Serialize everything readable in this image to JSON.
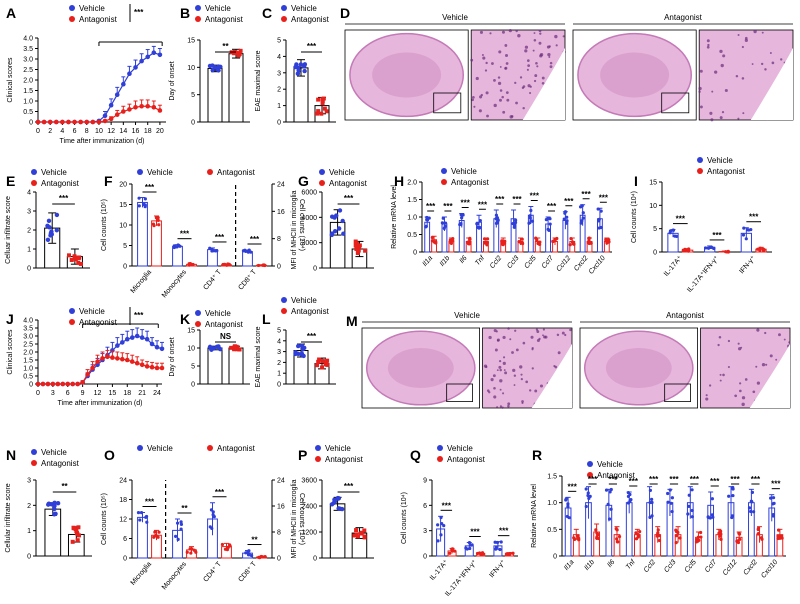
{
  "colors": {
    "vehicle": "#2f3fd8",
    "antagonist": "#e8201c",
    "tissue": "#c47ab7",
    "tissue_light": "#e6b6dc"
  },
  "legend": {
    "vehicle": "Vehicle",
    "antagonist": "Antagonist"
  },
  "chart_data": [
    {
      "id": "A",
      "type": "line",
      "title": "",
      "xlabel": "Time after immunization (d)",
      "ylabel": "Clinical scores",
      "xlim": [
        0,
        21
      ],
      "ylim": [
        0,
        4.0
      ],
      "xticks": [
        "0",
        "2",
        "4",
        "6",
        "8",
        "10",
        "12",
        "14",
        "16",
        "18",
        "20"
      ],
      "yticks": [
        "0",
        "0.5",
        "1.0",
        "1.5",
        "2.0",
        "2.5",
        "3.0",
        "3.5",
        "4.0"
      ],
      "significance": "***",
      "series": [
        {
          "name": "Vehicle",
          "x": [
            0,
            1,
            2,
            3,
            4,
            5,
            6,
            7,
            8,
            9,
            10,
            11,
            12,
            13,
            14,
            15,
            16,
            17,
            18,
            19,
            20
          ],
          "values": [
            0,
            0,
            0,
            0,
            0,
            0,
            0,
            0,
            0,
            0,
            0.05,
            0.3,
            0.8,
            1.3,
            1.8,
            2.3,
            2.6,
            2.9,
            3.1,
            3.3,
            3.2
          ],
          "err": [
            0,
            0,
            0,
            0,
            0,
            0,
            0,
            0,
            0,
            0,
            0.05,
            0.2,
            0.3,
            0.35,
            0.35,
            0.35,
            0.35,
            0.35,
            0.35,
            0.3,
            0.3
          ]
        },
        {
          "name": "Antagonist",
          "x": [
            0,
            1,
            2,
            3,
            4,
            5,
            6,
            7,
            8,
            9,
            10,
            11,
            12,
            13,
            14,
            15,
            16,
            17,
            18,
            19,
            20
          ],
          "values": [
            0,
            0,
            0,
            0,
            0,
            0,
            0,
            0,
            0,
            0,
            0,
            0.05,
            0.15,
            0.35,
            0.5,
            0.6,
            0.7,
            0.75,
            0.75,
            0.7,
            0.55
          ],
          "err": [
            0,
            0,
            0,
            0,
            0,
            0,
            0,
            0,
            0,
            0,
            0,
            0.05,
            0.1,
            0.2,
            0.25,
            0.25,
            0.3,
            0.3,
            0.3,
            0.3,
            0.25
          ]
        }
      ]
    },
    {
      "id": "B",
      "type": "bar",
      "ylabel": "Day of onset",
      "ylim": [
        0,
        15
      ],
      "yticks": [
        "0",
        "5",
        "10",
        "15"
      ],
      "significance": "**",
      "series": [
        {
          "name": "Vehicle",
          "values": [
            9.8
          ],
          "err": [
            0.6
          ]
        },
        {
          "name": "Antagonist",
          "values": [
            12.5
          ],
          "err": [
            0.8
          ]
        }
      ]
    },
    {
      "id": "C",
      "type": "bar",
      "ylabel": "EAE maximal score",
      "ylim": [
        0,
        5
      ],
      "yticks": [
        "0",
        "1",
        "2",
        "3",
        "4",
        "5"
      ],
      "significance": "***",
      "series": [
        {
          "name": "Vehicle",
          "values": [
            3.3
          ],
          "err": [
            0.5
          ]
        },
        {
          "name": "Antagonist",
          "values": [
            1.0
          ],
          "err": [
            0.5
          ]
        }
      ]
    },
    {
      "id": "E",
      "type": "bar",
      "ylabel": "Celluar infiltrate score",
      "ylim": [
        0,
        4
      ],
      "yticks": [
        "0",
        "1",
        "2",
        "3",
        "4"
      ],
      "significance": "***",
      "series": [
        {
          "name": "Vehicle",
          "values": [
            2.1
          ],
          "err": [
            0.8
          ]
        },
        {
          "name": "Antagonist",
          "values": [
            0.6
          ],
          "err": [
            0.4
          ]
        }
      ]
    },
    {
      "id": "F",
      "type": "bar",
      "ylabel": "Cell counts (10⁵)",
      "ylabel_right": "Cell counts (10⁴)",
      "ylim": [
        0,
        20
      ],
      "ylim_right": [
        0,
        24
      ],
      "yticks": [
        "0",
        "5",
        "10",
        "15",
        "20"
      ],
      "yticks_right": [
        "0",
        "8",
        "16",
        "24"
      ],
      "categories": [
        "Microglia",
        "Monocytes",
        "CD4⁺ T",
        "CD8⁺ T"
      ],
      "significance": [
        "***",
        "***",
        "***",
        "***"
      ],
      "series": [
        {
          "name": "Vehicle",
          "values": [
            15.5,
            4.8,
            4.0,
            3.5
          ],
          "err": [
            1.2,
            0.4,
            0.4,
            0.4
          ]
        },
        {
          "name": "Antagonist",
          "values": [
            11,
            0.4,
            0.3,
            0.2
          ],
          "err": [
            1.2,
            0.2,
            0.2,
            0.1
          ]
        }
      ]
    },
    {
      "id": "G",
      "type": "bar",
      "ylabel": "MFI of MHCII in microglia",
      "ylim": [
        0,
        6000
      ],
      "yticks": [
        "0",
        "2000",
        "4000",
        "6000"
      ],
      "significance": "***",
      "series": [
        {
          "name": "Vehicle",
          "values": [
            3600
          ],
          "err": [
            1000
          ]
        },
        {
          "name": "Antagonist",
          "values": [
            1500
          ],
          "err": [
            600
          ]
        }
      ]
    },
    {
      "id": "H",
      "type": "bar",
      "ylabel": "Relative mRNA level",
      "ylim": [
        0,
        2.0
      ],
      "yticks": [
        "0",
        "0.5",
        "1.0",
        "1.5",
        "2.0"
      ],
      "categories": [
        "Il1a",
        "Il1b",
        "Il6",
        "Tnf",
        "Ccl2",
        "Ccl3",
        "Ccl5",
        "Ccl7",
        "Ccl12",
        "Cxcl2",
        "Cxcl10"
      ],
      "significance": [
        "***",
        "***",
        "***",
        "***",
        "***",
        "***",
        "***",
        "***",
        "***",
        "***",
        "***"
      ],
      "series": [
        {
          "name": "Vehicle",
          "values": [
            0.85,
            0.8,
            0.9,
            0.85,
            0.95,
            0.95,
            1.05,
            0.8,
            0.9,
            1.05,
            0.95
          ],
          "err": [
            0.15,
            0.2,
            0.2,
            0.2,
            0.25,
            0.25,
            0.25,
            0.2,
            0.25,
            0.3,
            0.3
          ]
        },
        {
          "name": "Antagonist",
          "values": [
            0.35,
            0.3,
            0.3,
            0.3,
            0.3,
            0.3,
            0.3,
            0.3,
            0.3,
            0.3,
            0.3
          ],
          "err": [
            0.1,
            0.1,
            0.1,
            0.1,
            0.1,
            0.1,
            0.1,
            0.1,
            0.1,
            0.1,
            0.1
          ]
        }
      ]
    },
    {
      "id": "I",
      "type": "bar",
      "ylabel": "Cell counts (10⁴)",
      "ylim": [
        0,
        15
      ],
      "yticks": [
        "0",
        "5",
        "10",
        "15"
      ],
      "categories": [
        "IL-17A⁺",
        "IL-17A⁺IFN-γ⁺",
        "IFN-γ⁺"
      ],
      "significance": [
        "***",
        "***",
        "***"
      ],
      "series": [
        {
          "name": "Vehicle",
          "values": [
            4.0,
            1.0,
            4.0
          ],
          "err": [
            0.8,
            0.3,
            1.2
          ]
        },
        {
          "name": "Antagonist",
          "values": [
            0.4,
            0.1,
            0.6
          ],
          "err": [
            0.3,
            0.1,
            0.4
          ]
        }
      ]
    },
    {
      "id": "J",
      "type": "line",
      "xlabel": "Time after immunization (d)",
      "ylabel": "Clinical scores",
      "xlim": [
        0,
        25
      ],
      "ylim": [
        0,
        4.0
      ],
      "xticks": [
        "0",
        "3",
        "6",
        "9",
        "12",
        "15",
        "18",
        "21",
        "24"
      ],
      "yticks": [
        "0",
        "0.5",
        "1.0",
        "1.5",
        "2.0",
        "2.5",
        "3.0",
        "3.5",
        "4.0"
      ],
      "significance": "***",
      "series": [
        {
          "name": "Vehicle",
          "x": [
            0,
            1,
            2,
            3,
            4,
            5,
            6,
            7,
            8,
            9,
            10,
            11,
            12,
            13,
            14,
            15,
            16,
            17,
            18,
            19,
            20,
            21,
            22,
            23,
            24,
            25
          ],
          "values": [
            0,
            0,
            0,
            0,
            0,
            0,
            0,
            0,
            0,
            0.1,
            0.5,
            0.9,
            1.2,
            1.5,
            1.8,
            2.1,
            2.4,
            2.6,
            2.8,
            2.9,
            3.0,
            2.9,
            2.8,
            2.5,
            2.3,
            2.2
          ],
          "err": [
            0,
            0,
            0,
            0,
            0,
            0,
            0,
            0,
            0,
            0.1,
            0.2,
            0.3,
            0.4,
            0.4,
            0.5,
            0.5,
            0.5,
            0.5,
            0.5,
            0.5,
            0.5,
            0.5,
            0.5,
            0.4,
            0.4,
            0.4
          ]
        },
        {
          "name": "Antagonist",
          "x": [
            0,
            1,
            2,
            3,
            4,
            5,
            6,
            7,
            8,
            9,
            10,
            11,
            12,
            13,
            14,
            15,
            16,
            17,
            18,
            19,
            20,
            21,
            22,
            23,
            24,
            25
          ],
          "values": [
            0,
            0,
            0,
            0,
            0,
            0,
            0,
            0,
            0,
            0.1,
            0.6,
            1.0,
            1.4,
            1.6,
            1.7,
            1.65,
            1.6,
            1.55,
            1.5,
            1.4,
            1.3,
            1.2,
            1.1,
            1.05,
            1.0,
            1.0
          ],
          "err": [
            0,
            0,
            0,
            0,
            0,
            0,
            0,
            0,
            0,
            0.1,
            0.3,
            0.4,
            0.4,
            0.4,
            0.4,
            0.4,
            0.4,
            0.4,
            0.4,
            0.4,
            0.4,
            0.3,
            0.3,
            0.3,
            0.3,
            0.3
          ]
        }
      ]
    },
    {
      "id": "K",
      "type": "bar",
      "ylabel": "Day of onset",
      "ylim": [
        0,
        15
      ],
      "yticks": [
        "0",
        "5",
        "10",
        "15"
      ],
      "significance": "NS",
      "series": [
        {
          "name": "Vehicle",
          "values": [
            10
          ],
          "err": [
            0.5
          ]
        },
        {
          "name": "Antagonist",
          "values": [
            10
          ],
          "err": [
            0.5
          ]
        }
      ]
    },
    {
      "id": "L",
      "type": "bar",
      "ylabel": "EAE maximal score",
      "ylim": [
        0,
        5
      ],
      "yticks": [
        "0",
        "1",
        "2",
        "3",
        "4",
        "5"
      ],
      "significance": "***",
      "series": [
        {
          "name": "Vehicle",
          "values": [
            3.1
          ],
          "err": [
            0.6
          ]
        },
        {
          "name": "Antagonist",
          "values": [
            1.9
          ],
          "err": [
            0.5
          ]
        }
      ]
    },
    {
      "id": "N",
      "type": "bar",
      "ylabel": "Cellular infiltrate score",
      "ylim": [
        0,
        3
      ],
      "yticks": [
        "0",
        "1",
        "2",
        "3"
      ],
      "significance": "**",
      "series": [
        {
          "name": "Vehicle",
          "values": [
            1.85
          ],
          "err": [
            0.25
          ]
        },
        {
          "name": "Antagonist",
          "values": [
            0.85
          ],
          "err": [
            0.3
          ]
        }
      ]
    },
    {
      "id": "O",
      "type": "bar",
      "ylabel": "Cell counts (10⁵)",
      "ylabel_right": "Cell counts (10⁴)",
      "ylim": [
        0,
        24
      ],
      "ylim_right": [
        0,
        24
      ],
      "yticks": [
        "0",
        "6",
        "12",
        "18",
        "24"
      ],
      "yticks_right": [
        "0",
        "8",
        "16",
        "24"
      ],
      "categories": [
        "Microglia",
        "Monocytes",
        "CD4⁺ T",
        "CD8⁺ T"
      ],
      "significance": [
        "***",
        "**",
        "***",
        "**"
      ],
      "series": [
        {
          "name": "Vehicle",
          "values": [
            12.5,
            8.5,
            12,
            1.5
          ],
          "err": [
            1.5,
            3.5,
            5.0,
            0.8
          ]
        },
        {
          "name": "Antagonist",
          "values": [
            7.0,
            2.5,
            3.5,
            0.3
          ],
          "err": [
            1.5,
            1.0,
            1.0,
            0.2
          ]
        }
      ]
    },
    {
      "id": "P",
      "type": "bar",
      "ylabel": "MFI of MHCII in microglia",
      "ylim": [
        0,
        3600
      ],
      "yticks": [
        "0",
        "1200",
        "2400",
        "3600"
      ],
      "significance": "***",
      "series": [
        {
          "name": "Vehicle",
          "values": [
            2500
          ],
          "err": [
            300
          ]
        },
        {
          "name": "Antagonist",
          "values": [
            1150
          ],
          "err": [
            250
          ]
        }
      ]
    },
    {
      "id": "Q",
      "type": "bar",
      "ylabel": "Cell counts (10⁴)",
      "ylim": [
        0,
        9
      ],
      "yticks": [
        "0",
        "3",
        "6",
        "9"
      ],
      "categories": [
        "IL-17A⁺",
        "IL-17A⁺IFN-γ⁺",
        "IFN-γ⁺"
      ],
      "significance": [
        "***",
        "***",
        "***"
      ],
      "series": [
        {
          "name": "Vehicle",
          "values": [
            3.2,
            1.2,
            1.2
          ],
          "err": [
            1.5,
            0.4,
            0.5
          ]
        },
        {
          "name": "Antagonist",
          "values": [
            0.6,
            0.3,
            0.3
          ],
          "err": [
            0.3,
            0.1,
            0.1
          ]
        }
      ]
    },
    {
      "id": "R",
      "type": "bar",
      "ylabel": "Relative mRNA level",
      "ylim": [
        0,
        1.5
      ],
      "yticks": [
        "0",
        "0.5",
        "1.0",
        "1.5"
      ],
      "categories": [
        "Il1a",
        "Il1b",
        "Il6",
        "Tnf",
        "Ccl2",
        "Ccl3",
        "Ccl5",
        "Ccl7",
        "Ccl12",
        "Cxcl2",
        "Cxcl10"
      ],
      "significance": [
        "***",
        "***",
        "***",
        "***",
        "***",
        "***",
        "***",
        "***",
        "***",
        "***",
        "***"
      ],
      "series": [
        {
          "name": "Vehicle",
          "values": [
            0.9,
            1.0,
            0.95,
            1.0,
            1.0,
            1.0,
            1.0,
            0.95,
            1.0,
            1.0,
            0.9
          ],
          "err": [
            0.2,
            0.3,
            0.3,
            0.2,
            0.3,
            0.25,
            0.3,
            0.25,
            0.3,
            0.25,
            0.25
          ]
        },
        {
          "name": "Antagonist",
          "values": [
            0.4,
            0.45,
            0.4,
            0.4,
            0.4,
            0.4,
            0.35,
            0.4,
            0.35,
            0.4,
            0.4
          ],
          "err": [
            0.1,
            0.15,
            0.15,
            0.1,
            0.15,
            0.15,
            0.1,
            0.1,
            0.1,
            0.15,
            0.1
          ]
        }
      ]
    }
  ],
  "histology": [
    {
      "id": "D",
      "labels": [
        "Vehicle",
        "Antagonist"
      ]
    },
    {
      "id": "M",
      "labels": [
        "Vehicle",
        "Antagonist"
      ]
    }
  ]
}
